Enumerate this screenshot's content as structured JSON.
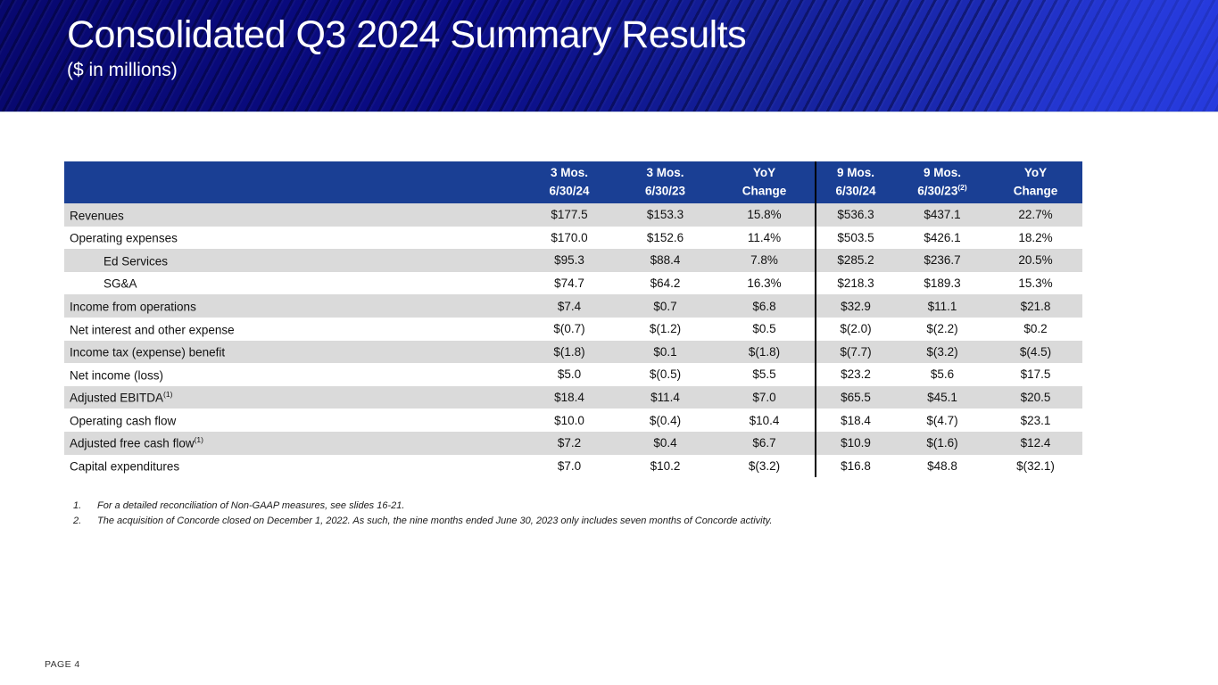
{
  "slide": {
    "title": "Consolidated Q3 2024 Summary Results",
    "subtitle": "($ in millions)",
    "page_label": "PAGE 4"
  },
  "colors": {
    "banner_dark": "#08086f",
    "banner_bright": "#2435d2",
    "table_header_bg": "#1a3f94",
    "row_alt_bg": "#dadada",
    "divider": "#000000"
  },
  "table": {
    "columns": [
      {
        "line1": "3 Mos.",
        "line2": "6/30/24",
        "sup": ""
      },
      {
        "line1": "3 Mos.",
        "line2": "6/30/23",
        "sup": ""
      },
      {
        "line1": "YoY",
        "line2": "Change",
        "sup": ""
      },
      {
        "line1": "9 Mos.",
        "line2": "6/30/24",
        "sup": ""
      },
      {
        "line1": "9 Mos.",
        "line2": "6/30/23",
        "sup": "(2)"
      },
      {
        "line1": "YoY",
        "line2": "Change",
        "sup": ""
      }
    ],
    "rows": [
      {
        "label": "Revenues",
        "sup": "",
        "indent": false,
        "values": [
          "$177.5",
          "$153.3",
          "15.8%",
          "$536.3",
          "$437.1",
          "22.7%"
        ]
      },
      {
        "label": "Operating expenses",
        "sup": "",
        "indent": false,
        "values": [
          "$170.0",
          "$152.6",
          "11.4%",
          "$503.5",
          "$426.1",
          "18.2%"
        ]
      },
      {
        "label": "Ed Services",
        "sup": "",
        "indent": true,
        "values": [
          "$95.3",
          "$88.4",
          "7.8%",
          "$285.2",
          "$236.7",
          "20.5%"
        ]
      },
      {
        "label": "SG&A",
        "sup": "",
        "indent": true,
        "values": [
          "$74.7",
          "$64.2",
          "16.3%",
          "$218.3",
          "$189.3",
          "15.3%"
        ]
      },
      {
        "label": "Income from operations",
        "sup": "",
        "indent": false,
        "values": [
          "$7.4",
          "$0.7",
          "$6.8",
          "$32.9",
          "$11.1",
          "$21.8"
        ]
      },
      {
        "label": "Net interest and other expense",
        "sup": "",
        "indent": false,
        "values": [
          "$(0.7)",
          "$(1.2)",
          "$0.5",
          "$(2.0)",
          "$(2.2)",
          "$0.2"
        ]
      },
      {
        "label": "Income tax (expense) benefit",
        "sup": "",
        "indent": false,
        "values": [
          "$(1.8)",
          "$0.1",
          "$(1.8)",
          "$(7.7)",
          "$(3.2)",
          "$(4.5)"
        ]
      },
      {
        "label": "Net income (loss)",
        "sup": "",
        "indent": false,
        "values": [
          "$5.0",
          "$(0.5)",
          "$5.5",
          "$23.2",
          "$5.6",
          "$17.5"
        ]
      },
      {
        "label": "Adjusted EBITDA",
        "sup": "(1)",
        "indent": false,
        "values": [
          "$18.4",
          "$11.4",
          "$7.0",
          "$65.5",
          "$45.1",
          "$20.5"
        ]
      },
      {
        "label": "Operating cash flow",
        "sup": "",
        "indent": false,
        "values": [
          "$10.0",
          "$(0.4)",
          "$10.4",
          "$18.4",
          "$(4.7)",
          "$23.1"
        ]
      },
      {
        "label": "Adjusted free cash flow",
        "sup": "(1)",
        "indent": false,
        "values": [
          "$7.2",
          "$0.4",
          "$6.7",
          "$10.9",
          "$(1.6)",
          "$12.4"
        ]
      },
      {
        "label": "Capital expenditures",
        "sup": "",
        "indent": false,
        "values": [
          "$7.0",
          "$10.2",
          "$(3.2)",
          "$16.8",
          "$48.8",
          "$(32.1)"
        ]
      }
    ]
  },
  "footnotes": [
    {
      "num": "1.",
      "text": "For a detailed reconciliation of Non-GAAP measures, see slides 16-21."
    },
    {
      "num": "2.",
      "text": "The acquisition of Concorde closed on December 1, 2022. As such, the nine months ended June 30, 2023 only includes seven months of Concorde activity."
    }
  ]
}
